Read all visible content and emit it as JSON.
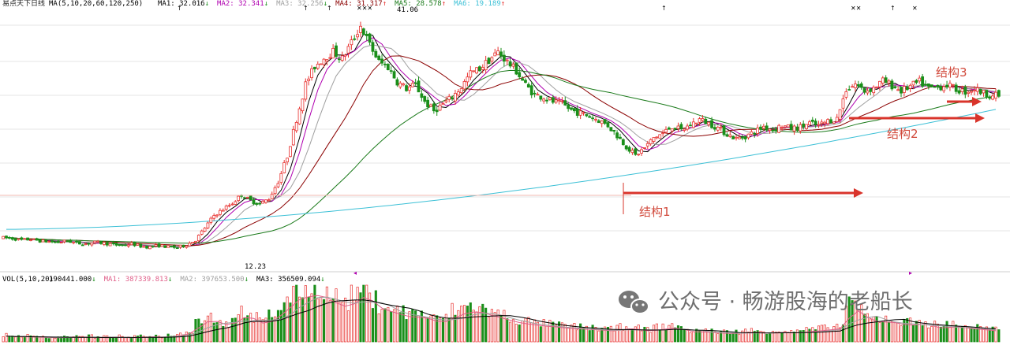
{
  "chart_data": {
    "type": "candlestick",
    "title": "易点天下日线",
    "price_panel": {
      "indicator": "MA(5,10,20,60,120,250)",
      "ylim": [
        10,
        43
      ],
      "grid": true,
      "header_items": [
        {
          "label": "MA1: 32.016",
          "arrow": "↓",
          "color": "#000000"
        },
        {
          "label": "MA2: 32.341",
          "arrow": "↓",
          "color": "#b000b0"
        },
        {
          "label": "MA3: 32.256",
          "arrow": "↓",
          "color": "#a0a0a0"
        },
        {
          "label": "MA4: 31.317",
          "arrow": "↑",
          "color": "#8b0000"
        },
        {
          "label": "MA5: 28.578",
          "arrow": "↑",
          "color": "#1a7a1a"
        },
        {
          "label": "MA6: 19.189",
          "arrow": "↑",
          "color": "#3cc0d6"
        }
      ],
      "high_label": "41.06",
      "low_label": "12.23",
      "closes": [
        13.5,
        13.4,
        13.2,
        13.3,
        13.1,
        13.0,
        12.9,
        13.1,
        12.8,
        12.7,
        12.9,
        12.8,
        12.6,
        12.5,
        12.7,
        12.4,
        12.3,
        12.5,
        12.3,
        12.23,
        12.6,
        13.2,
        14.8,
        16.4,
        17.2,
        18.0,
        19.1,
        18.3,
        17.9,
        18.6,
        20.8,
        24.1,
        28.9,
        33.5,
        35.8,
        36.9,
        37.7,
        36.8,
        38.9,
        41.06,
        38.6,
        36.4,
        35.7,
        33.8,
        32.9,
        33.4,
        31.2,
        30.0,
        30.9,
        31.8,
        33.1,
        34.9,
        35.5,
        36.6,
        37.7,
        36.4,
        35.2,
        33.4,
        32.1,
        31.8,
        31.2,
        30.9,
        30.1,
        29.7,
        29.3,
        28.8,
        28.1,
        26.8,
        25.4,
        24.2,
        25.2,
        26.5,
        27.1,
        28.0,
        27.5,
        28.2,
        28.9,
        28.4,
        27.8,
        27.0,
        26.4,
        26.7,
        27.3,
        28.0,
        27.6,
        28.1,
        27.7,
        27.9,
        28.4,
        28.1,
        28.7,
        29.0,
        32.8,
        33.5,
        32.6,
        33.0,
        33.9,
        33.3,
        32.6,
        33.2,
        33.8,
        32.9,
        33.1,
        33.4,
        32.8,
        32.5,
        32.9,
        32.3,
        32.0
      ],
      "annotations": [
        {
          "text": "结构1",
          "color": "#d14a3c"
        },
        {
          "text": "结构2",
          "color": "#d14a3c"
        },
        {
          "text": "结构3",
          "color": "#d14a3c"
        }
      ],
      "line_colors": {
        "ma1": "#000000",
        "ma2": "#b000b0",
        "ma3": "#a0a0a0",
        "ma4": "#8b0000",
        "ma5": "#1a7a1a",
        "ma6": "#3cc0d6"
      },
      "up_color": "#e8312f",
      "down_color": "#1a8f1a",
      "arrow_color": "#d9342b"
    },
    "volume_panel": {
      "indicator": "VOL(5,10,20)",
      "header_items": [
        {
          "label": "190441.000",
          "arrow": "↓",
          "color": "#000000"
        },
        {
          "label": "MA1: 387339.813",
          "arrow": "↓",
          "color": "#e0608a"
        },
        {
          "label": "MA2: 397653.500",
          "arrow": "↓",
          "color": "#a0a0a0"
        },
        {
          "label": "MA3: 356509.094",
          "arrow": "↓",
          "color": "#000000"
        }
      ],
      "level": [
        0.12,
        0.1,
        0.11,
        0.09,
        0.1,
        0.08,
        0.09,
        0.1,
        0.09,
        0.11,
        0.08,
        0.09,
        0.1,
        0.08,
        0.09,
        0.1,
        0.11,
        0.09,
        0.12,
        0.14,
        0.2,
        0.38,
        0.45,
        0.4,
        0.32,
        0.46,
        0.55,
        0.42,
        0.36,
        0.48,
        0.62,
        0.8,
        0.95,
        0.92,
        1.0,
        0.84,
        0.78,
        0.7,
        0.88,
        0.96,
        0.74,
        0.66,
        0.6,
        0.55,
        0.5,
        0.52,
        0.46,
        0.4,
        0.44,
        0.56,
        0.6,
        0.64,
        0.58,
        0.52,
        0.48,
        0.42,
        0.38,
        0.36,
        0.33,
        0.32,
        0.3,
        0.28,
        0.27,
        0.26,
        0.25,
        0.24,
        0.22,
        0.26,
        0.28,
        0.24,
        0.22,
        0.26,
        0.27,
        0.3,
        0.22,
        0.2,
        0.21,
        0.19,
        0.18,
        0.17,
        0.18,
        0.2,
        0.19,
        0.18,
        0.2,
        0.19,
        0.18,
        0.21,
        0.22,
        0.24,
        0.26,
        0.28,
        0.7,
        0.58,
        0.45,
        0.4,
        0.42,
        0.38,
        0.34,
        0.36,
        0.38,
        0.3,
        0.28,
        0.32,
        0.3,
        0.27,
        0.26,
        0.24,
        0.22
      ]
    }
  },
  "watermark": {
    "text": "公众号 · 畅游股海的老船长",
    "icon": "wechat-icon"
  }
}
